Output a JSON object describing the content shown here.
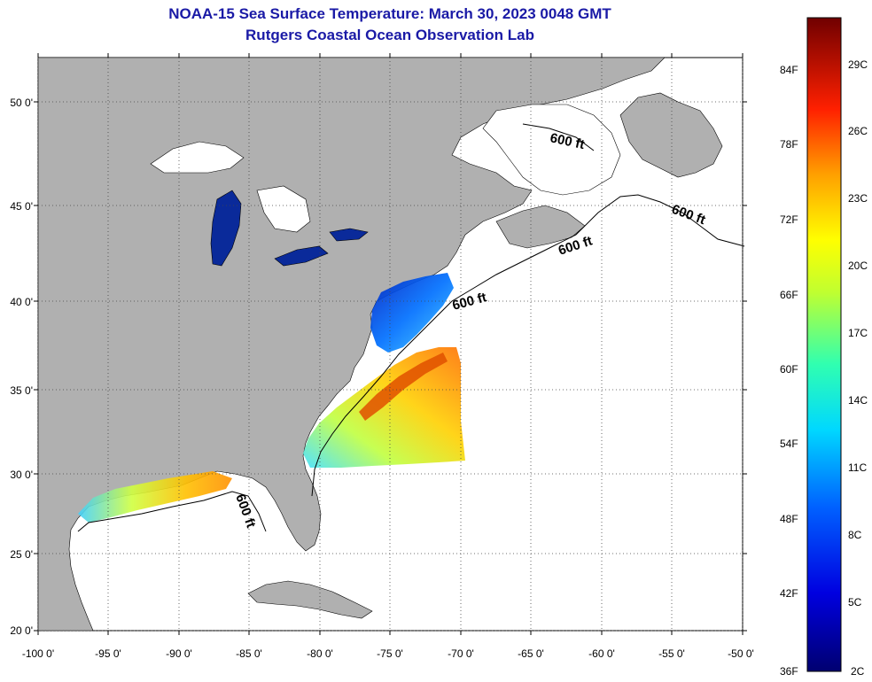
{
  "title_line1": "NOAA-15 Sea Surface Temperature:  March 30, 2023 0048 GMT",
  "title_line2": "Rutgers Coastal Ocean Observation Lab",
  "lat_labels": [
    "50 0'",
    "45 0'",
    "40 0'",
    "35 0'",
    "30 0'",
    "25 0'",
    "20 0'"
  ],
  "lon_labels": [
    "-100 0'",
    "-95 0'",
    "-90 0'",
    "-85 0'",
    "-80 0'",
    "-75 0'",
    "-70 0'",
    "-65 0'",
    "-60 0'",
    "-55 0'",
    "-50 0'"
  ],
  "contour_label": "600 ft",
  "colorbar": {
    "fahrenheit": [
      "84F",
      "78F",
      "72F",
      "66F",
      "60F",
      "54F",
      "48F",
      "42F",
      "36F"
    ],
    "celsius": [
      "29C",
      "26C",
      "23C",
      "20C",
      "17C",
      "14C",
      "11C",
      "8C",
      "5C",
      "2C"
    ]
  },
  "colors": {
    "land": "#b0b0b0",
    "ocean": "#ffffff",
    "title": "#1a1aa6"
  }
}
